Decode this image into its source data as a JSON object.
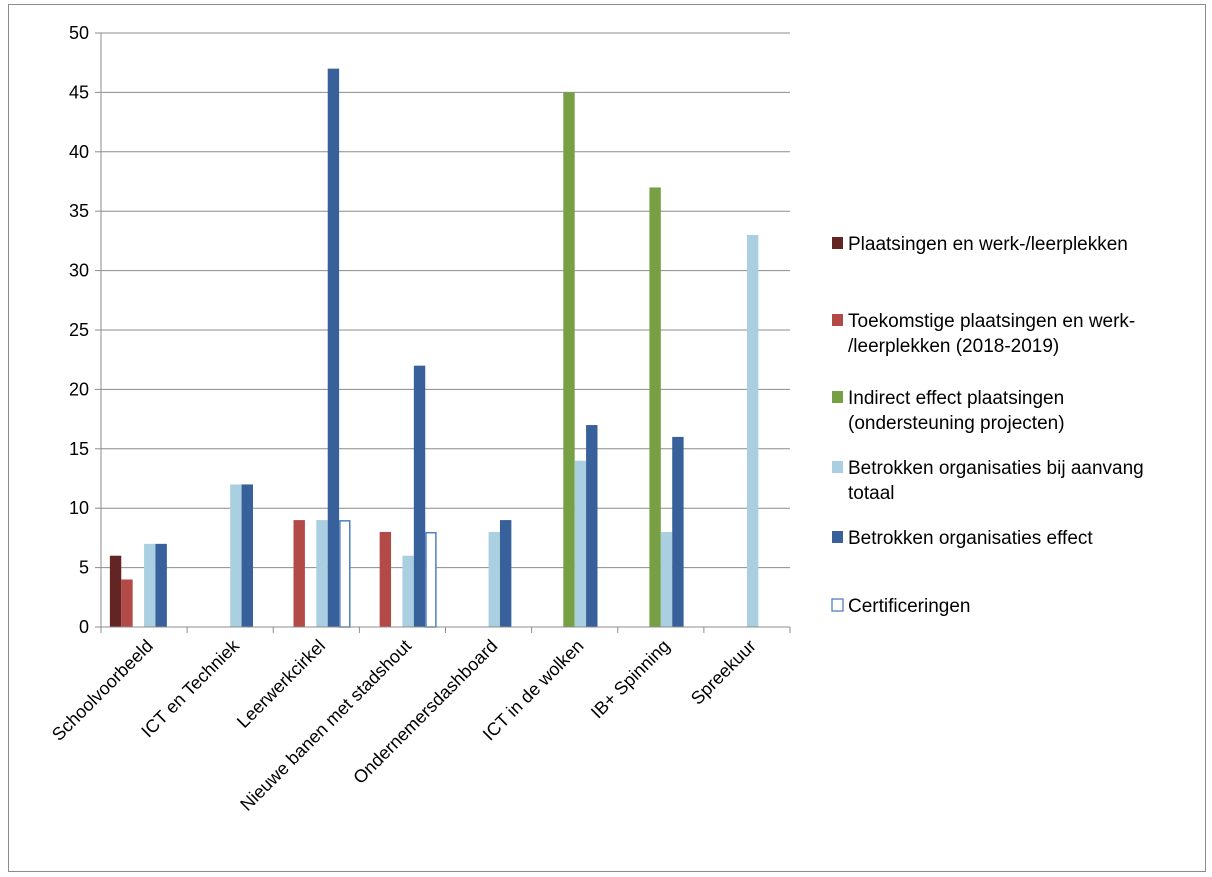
{
  "chart_data": {
    "type": "bar",
    "title": "",
    "xlabel": "",
    "ylabel": "",
    "ylim": [
      0,
      50
    ],
    "yticks": [
      0,
      5,
      10,
      15,
      20,
      25,
      30,
      35,
      40,
      45,
      50
    ],
    "grid": true,
    "legend_position": "right",
    "categories": [
      "Schoolvoorbeeld",
      "ICT en Techniek",
      "Leerwerkcirkel",
      "Nieuwe banen met stadshout",
      "Ondernemersdashboard",
      "ICT in de wolken",
      "IB+ Spinning",
      "Spreekuur"
    ],
    "series": [
      {
        "name": "Plaatsingen en werk-/leerplekken",
        "legend_lines": [
          "Plaatsingen en werk-/leerplekken"
        ],
        "color": "#632523",
        "style": "filled",
        "values": [
          6,
          null,
          null,
          null,
          null,
          null,
          null,
          null
        ]
      },
      {
        "name": "Toekomstige plaatsingen en werk-/leerplekken (2018-2019)",
        "legend_lines": [
          "Toekomstige plaatsingen en werk-",
          "/leerplekken (2018-2019)"
        ],
        "color": "#b44a47",
        "style": "filled",
        "values": [
          4,
          null,
          9,
          8,
          null,
          null,
          null,
          null
        ]
      },
      {
        "name": "Indirect effect plaatsingen (ondersteuning projecten)",
        "legend_lines": [
          "Indirect effect plaatsingen",
          "(ondersteuning projecten)"
        ],
        "color": "#77a044",
        "style": "filled",
        "values": [
          null,
          null,
          null,
          null,
          null,
          45,
          37,
          null
        ]
      },
      {
        "name": "Betrokken organisaties bij aanvang totaal",
        "legend_lines": [
          "Betrokken organisaties bij aanvang",
          "totaal"
        ],
        "color": "#a9cfe0",
        "style": "filled",
        "values": [
          7,
          12,
          9,
          6,
          8,
          14,
          8,
          33
        ]
      },
      {
        "name": "Betrokken organisaties effect",
        "legend_lines": [
          "Betrokken organisaties effect"
        ],
        "color": "#38609a",
        "style": "filled",
        "values": [
          7,
          12,
          47,
          22,
          9,
          17,
          16,
          null
        ]
      },
      {
        "name": "Certificeringen",
        "legend_lines": [
          "Certificeringen"
        ],
        "color": "#4f81bd",
        "style": "outline",
        "values": [
          null,
          null,
          9,
          8,
          null,
          null,
          null,
          null
        ]
      }
    ]
  }
}
